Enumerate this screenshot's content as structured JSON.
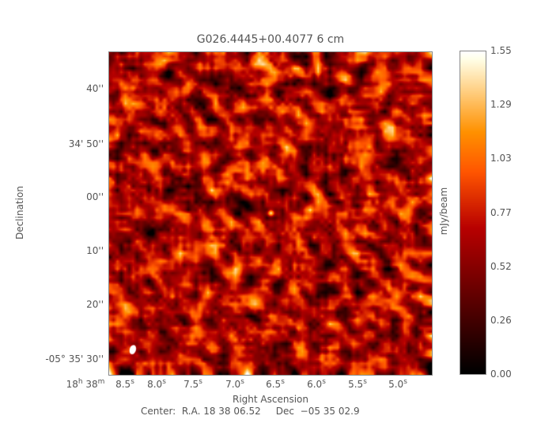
{
  "chart_data": {
    "type": "heatmap",
    "title": "G026.4445+00.4077 6 cm",
    "xlabel": "Right Ascension",
    "ylabel": "Declination",
    "colorbar_label": "mJy/beam",
    "colormap": "heat (black-red-orange-white)",
    "zlim": [
      0.0,
      1.55
    ],
    "colorbar_ticks": [
      "1.55",
      "1.29",
      "1.03",
      "0.77",
      "0.52",
      "0.26",
      "0.00"
    ],
    "x_ticks": [
      {
        "main": "18",
        "sup": "h",
        "main2": " 38",
        "sup2": "m"
      },
      {
        "main": "8.5",
        "sup": "s"
      },
      {
        "main": "8.0",
        "sup": "s"
      },
      {
        "main": "7.5",
        "sup": "s"
      },
      {
        "main": "7.0",
        "sup": "s"
      },
      {
        "main": "6.5",
        "sup": "s"
      },
      {
        "main": "6.0",
        "sup": "s"
      },
      {
        "main": "5.5",
        "sup": "s"
      },
      {
        "main": "5.0",
        "sup": "s"
      }
    ],
    "y_ticks": [
      "40''",
      "34' 50''",
      "00''",
      "10''",
      "20''",
      "-05° 35' 30''"
    ],
    "y_tick_first_parts": {
      "pre": "−05",
      "sup": "o",
      "post": " 35' 30''"
    },
    "center_text": "Center:  R.A. 18 38 06.52     Dec  −05 35 02.9",
    "features": {
      "point_source": "bright compact source near image center",
      "beam": "white ellipse lower-left"
    }
  }
}
